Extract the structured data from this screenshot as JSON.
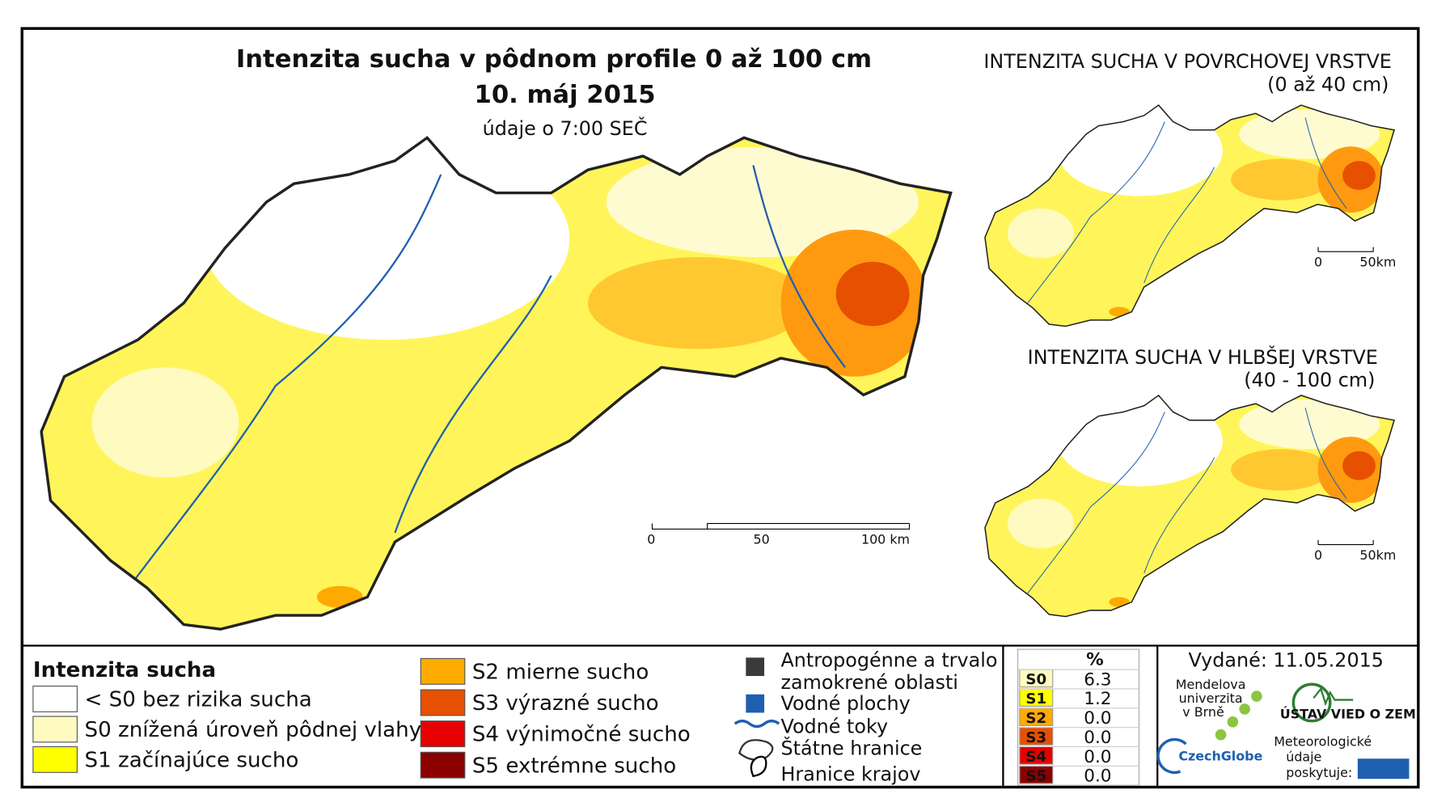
{
  "header": {
    "title": "Intenzita sucha v pôdnom profile 0 až 100 cm",
    "date": "10. máj 2015",
    "note": "údaje o 7:00 SEČ"
  },
  "main_scale": {
    "labels": [
      "0",
      "50",
      "100 km"
    ]
  },
  "insets": [
    {
      "title": "INTENZITA SUCHA V POVRCHOVEJ VRSTVE",
      "subtitle": "(0 až 40 cm)",
      "scale": [
        "0",
        "50km"
      ]
    },
    {
      "title": "INTENZITA SUCHA V HLBŠEJ VRSTVE",
      "subtitle": "(40 - 100 cm)",
      "scale": [
        "0",
        "50km"
      ]
    }
  ],
  "legend": {
    "title": "Intenzita sucha",
    "items": [
      {
        "label": "< S0 bez rizika sucha",
        "color": "#ffffff"
      },
      {
        "label": "S0 znížená úroveň pôdnej vlahy",
        "color": "#fffac0"
      },
      {
        "label": "S1 začínajúce sucho",
        "color": "#ffff00"
      },
      {
        "label": "S2 mierne sucho",
        "color": "#ffaa00"
      },
      {
        "label": "S3 výrazné sucho",
        "color": "#e65000"
      },
      {
        "label": "S4 výnimočné sucho",
        "color": "#e60000"
      },
      {
        "label": "S5 extrémne sucho",
        "color": "#8b0000"
      }
    ]
  },
  "layers": {
    "items": [
      {
        "label": "Antropogénne a trvalo zamokrené oblasti"
      },
      {
        "label": "Vodné plochy"
      },
      {
        "label": "Vodné toky"
      },
      {
        "label": "Štátne hranice"
      },
      {
        "label": "Hranice krajov"
      }
    ]
  },
  "table": {
    "header": "%",
    "rows": [
      [
        "S0",
        "6.3",
        "#fffac0"
      ],
      [
        "S1",
        "1.2",
        "#ffff00"
      ],
      [
        "S2",
        "0.0",
        "#ffaa00"
      ],
      [
        "S3",
        "0.0",
        "#e65000"
      ],
      [
        "S4",
        "0.0",
        "#e60000"
      ],
      [
        "S5",
        "0.0",
        "#8b0000"
      ]
    ]
  },
  "footer": {
    "issued": "Vydané: 11.05.2015",
    "mendel": [
      "Mendelova",
      "univerzita",
      "v Brně"
    ],
    "czechglobe": "CzechGlobe",
    "ustav": "ÚSTAV VIED O ZEMI",
    "meteo": [
      "Meteorologické",
      "údaje",
      "poskytuje:"
    ]
  }
}
